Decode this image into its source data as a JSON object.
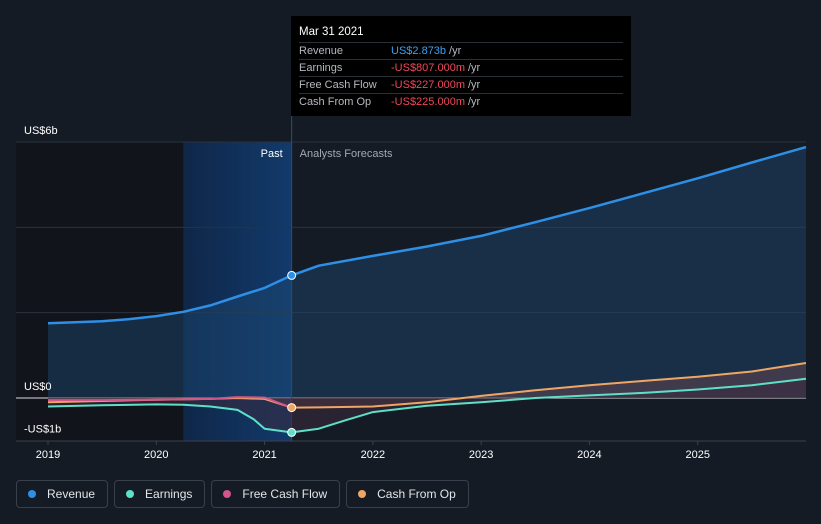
{
  "chart_data": {
    "type": "line",
    "y_axis_labels": [
      "US$6b",
      "US$0",
      "-US$1b"
    ],
    "ylim": [
      -1,
      6
    ],
    "x_tick_labels": [
      "2019",
      "2020",
      "2021",
      "2022",
      "2023",
      "2024",
      "2025"
    ],
    "xlim": [
      2019,
      2026
    ],
    "past_label": "Past",
    "forecast_label": "Analysts Forecasts",
    "past_shaded_from": 2020.25,
    "divider_x": 2021.25,
    "grid": true,
    "series": [
      {
        "name": "Revenue",
        "color": "#2e8fe6",
        "x": [
          2019,
          2019.5,
          2019.75,
          2020,
          2020.25,
          2020.5,
          2020.75,
          2021,
          2021.25,
          2021.5,
          2022,
          2022.5,
          2023,
          2023.5,
          2024,
          2024.5,
          2025,
          2025.5,
          2026
        ],
        "y": [
          1.75,
          1.8,
          1.85,
          1.92,
          2.02,
          2.17,
          2.38,
          2.58,
          2.873,
          3.1,
          3.33,
          3.55,
          3.8,
          4.12,
          4.45,
          4.8,
          5.15,
          5.52,
          5.88
        ]
      },
      {
        "name": "Earnings",
        "color": "#5ee0c8",
        "x": [
          2019,
          2019.5,
          2020,
          2020.25,
          2020.5,
          2020.75,
          2020.9,
          2021,
          2021.25,
          2021.5,
          2021.75,
          2022,
          2022.5,
          2023,
          2023.5,
          2024,
          2024.5,
          2025,
          2025.5,
          2026
        ],
        "y": [
          -0.2,
          -0.17,
          -0.15,
          -0.16,
          -0.2,
          -0.28,
          -0.5,
          -0.72,
          -0.807,
          -0.72,
          -0.52,
          -0.33,
          -0.18,
          -0.1,
          0.0,
          0.06,
          0.12,
          0.2,
          0.3,
          0.45
        ]
      },
      {
        "name": "Free Cash Flow",
        "color": "#d1568a",
        "x": [
          2019,
          2019.5,
          2020,
          2020.5,
          2020.75,
          2021,
          2021.25
        ],
        "y": [
          -0.05,
          -0.05,
          -0.04,
          -0.02,
          0.02,
          0.01,
          -0.227
        ]
      },
      {
        "name": "Cash From Op",
        "color": "#eea664",
        "x": [
          2019,
          2019.5,
          2020,
          2020.5,
          2020.75,
          2021,
          2021.25,
          2021.5,
          2022,
          2022.5,
          2023,
          2023.5,
          2024,
          2024.5,
          2025,
          2025.5,
          2026
        ],
        "y": [
          -0.1,
          -0.07,
          -0.04,
          -0.02,
          0.0,
          -0.02,
          -0.225,
          -0.22,
          -0.2,
          -0.1,
          0.05,
          0.18,
          0.3,
          0.4,
          0.5,
          0.62,
          0.82
        ]
      }
    ]
  },
  "tooltip": {
    "date": "Mar 31 2021",
    "rows": [
      {
        "label": "Revenue",
        "value": "US$2.873b",
        "unit": "/yr",
        "color": "blue"
      },
      {
        "label": "Earnings",
        "value": "-US$807.000m",
        "unit": "/yr",
        "color": "red"
      },
      {
        "label": "Free Cash Flow",
        "value": "-US$227.000m",
        "unit": "/yr",
        "color": "red"
      },
      {
        "label": "Cash From Op",
        "value": "-US$225.000m",
        "unit": "/yr",
        "color": "red"
      }
    ]
  },
  "legend": [
    {
      "label": "Revenue",
      "color": "#2e8fe6"
    },
    {
      "label": "Earnings",
      "color": "#5ee0c8"
    },
    {
      "label": "Free Cash Flow",
      "color": "#d1568a"
    },
    {
      "label": "Cash From Op",
      "color": "#eea664"
    }
  ]
}
